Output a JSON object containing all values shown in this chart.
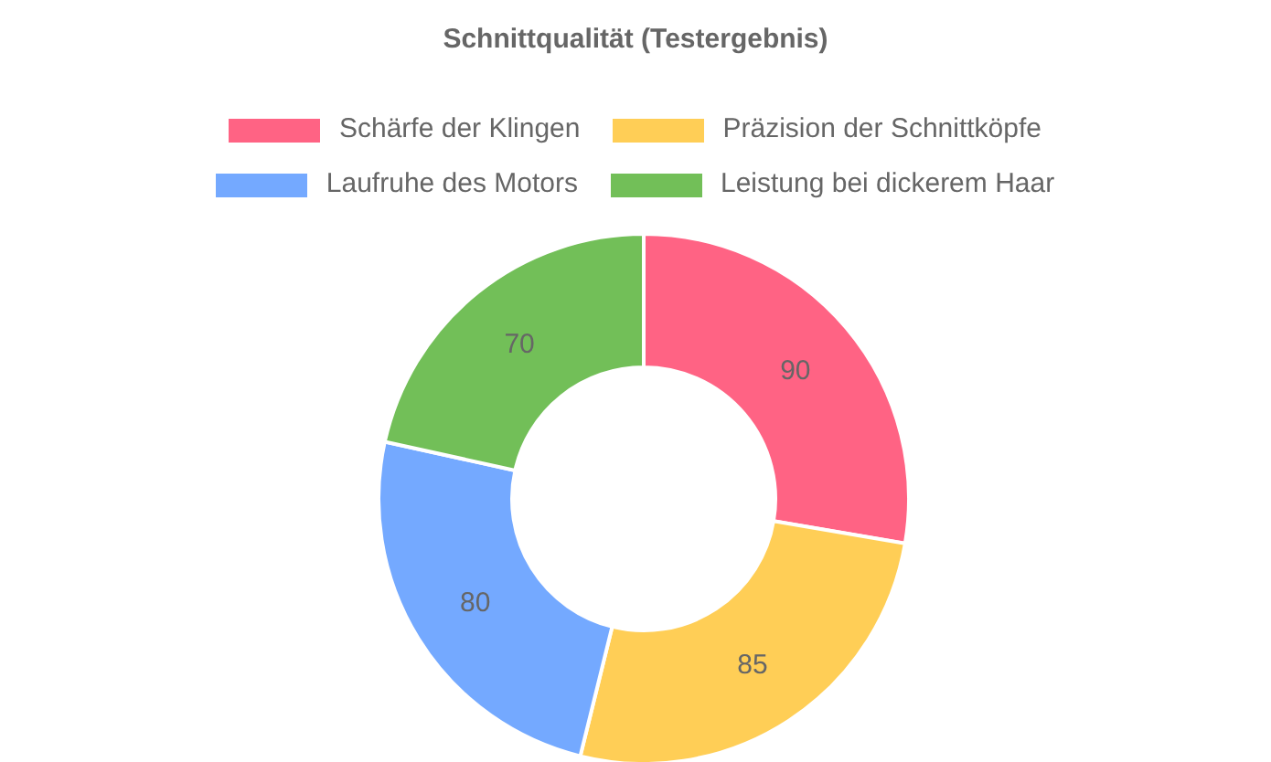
{
  "chart_data": {
    "type": "donut",
    "title": "Schnittqualität (Testergebnis)",
    "categories": [
      "Schärfe der Klingen",
      "Präzision der Schnittköpfe",
      "Laufruhe des Motors",
      "Leistung bei dickerem Haar"
    ],
    "values": [
      90,
      85,
      80,
      70
    ],
    "colors": [
      "#ff6384",
      "#ffce56",
      "#74a9ff",
      "#72bf58"
    ],
    "legend": "top",
    "data_labels": true
  }
}
